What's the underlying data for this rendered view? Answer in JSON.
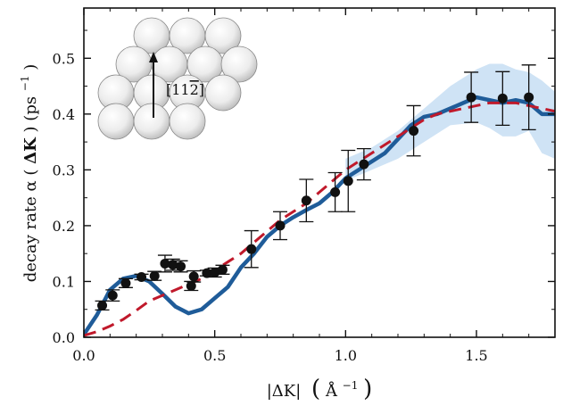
{
  "chart_data": {
    "type": "line",
    "xlabel_prefix": "|ΔK|",
    "xlabel_unit": "Å",
    "xlabel_exp": "−1",
    "ylabel_prefix": "decay rate α (",
    "ylabel_bold": "ΔK",
    "ylabel_suffix": ") (ps",
    "ylabel_exp": "−1",
    "ylabel_close": ")",
    "xlim": [
      0.0,
      1.8
    ],
    "ylim": [
      0.0,
      0.59
    ],
    "xticks": [
      0.0,
      0.5,
      1.0,
      1.5
    ],
    "xtick_labels": [
      "0.0",
      "0.5",
      "1.0",
      "1.5"
    ],
    "yticks": [
      0.0,
      0.1,
      0.2,
      0.3,
      0.4,
      0.5
    ],
    "ytick_labels": [
      "0.0",
      "0.1",
      "0.2",
      "0.3",
      "0.4",
      "0.5"
    ],
    "inset_label": "[11",
    "inset_label_bar": "2",
    "inset_label_end": "]",
    "colors": {
      "solid": "#1f5c99",
      "dashed": "#c0192b",
      "band": "#cfe3f5",
      "points": "#111111"
    },
    "series": [
      {
        "style": "solid",
        "x": [
          0.0,
          0.05,
          0.1,
          0.15,
          0.2,
          0.25,
          0.3,
          0.35,
          0.4,
          0.45,
          0.5,
          0.55,
          0.6,
          0.65,
          0.7,
          0.75,
          0.8,
          0.85,
          0.9,
          0.95,
          1.0,
          1.05,
          1.1,
          1.15,
          1.2,
          1.25,
          1.3,
          1.35,
          1.4,
          1.45,
          1.5,
          1.55,
          1.6,
          1.65,
          1.7,
          1.75,
          1.8
        ],
        "y": [
          0.005,
          0.04,
          0.085,
          0.105,
          0.11,
          0.1,
          0.078,
          0.055,
          0.043,
          0.05,
          0.07,
          0.09,
          0.125,
          0.15,
          0.18,
          0.2,
          0.215,
          0.228,
          0.24,
          0.26,
          0.285,
          0.3,
          0.315,
          0.33,
          0.355,
          0.38,
          0.395,
          0.4,
          0.41,
          0.42,
          0.43,
          0.425,
          0.42,
          0.425,
          0.42,
          0.4,
          0.4
        ]
      },
      {
        "style": "dashed",
        "x": [
          0.0,
          0.05,
          0.1,
          0.15,
          0.2,
          0.25,
          0.3,
          0.35,
          0.4,
          0.45,
          0.5,
          0.55,
          0.6,
          0.65,
          0.7,
          0.75,
          0.8,
          0.85,
          0.9,
          0.95,
          1.0,
          1.05,
          1.1,
          1.15,
          1.2,
          1.25,
          1.3,
          1.35,
          1.4,
          1.45,
          1.5,
          1.55,
          1.6,
          1.65,
          1.7,
          1.75,
          1.8
        ],
        "y": [
          0.003,
          0.01,
          0.02,
          0.032,
          0.048,
          0.065,
          0.075,
          0.085,
          0.095,
          0.105,
          0.12,
          0.135,
          0.15,
          0.17,
          0.19,
          0.21,
          0.225,
          0.24,
          0.26,
          0.28,
          0.3,
          0.315,
          0.33,
          0.345,
          0.36,
          0.375,
          0.39,
          0.4,
          0.405,
          0.41,
          0.415,
          0.42,
          0.42,
          0.42,
          0.415,
          0.41,
          0.405
        ]
      }
    ],
    "band": {
      "x": [
        1.0,
        1.1,
        1.2,
        1.3,
        1.4,
        1.5,
        1.55,
        1.6,
        1.65,
        1.7,
        1.75,
        1.8
      ],
      "lower": [
        0.28,
        0.3,
        0.32,
        0.35,
        0.38,
        0.385,
        0.375,
        0.36,
        0.36,
        0.37,
        0.33,
        0.32
      ],
      "upper": [
        0.32,
        0.34,
        0.37,
        0.41,
        0.45,
        0.48,
        0.49,
        0.49,
        0.48,
        0.475,
        0.46,
        0.44
      ]
    },
    "points": [
      {
        "x": 0.07,
        "y": 0.057,
        "err": 0.008
      },
      {
        "x": 0.11,
        "y": 0.075,
        "err": 0.01
      },
      {
        "x": 0.16,
        "y": 0.097,
        "err": 0.008
      },
      {
        "x": 0.22,
        "y": 0.108,
        "err": 0.005
      },
      {
        "x": 0.27,
        "y": 0.11,
        "err": 0.008
      },
      {
        "x": 0.31,
        "y": 0.132,
        "err": 0.015
      },
      {
        "x": 0.34,
        "y": 0.13,
        "err": 0.01
      },
      {
        "x": 0.37,
        "y": 0.127,
        "err": 0.01
      },
      {
        "x": 0.41,
        "y": 0.092,
        "err": 0.008
      },
      {
        "x": 0.42,
        "y": 0.109,
        "err": 0.01
      },
      {
        "x": 0.47,
        "y": 0.115,
        "err": 0.005
      },
      {
        "x": 0.5,
        "y": 0.116,
        "err": 0.008
      },
      {
        "x": 0.53,
        "y": 0.121,
        "err": 0.008
      },
      {
        "x": 0.64,
        "y": 0.158,
        "err": 0.033
      },
      {
        "x": 0.75,
        "y": 0.2,
        "err": 0.025
      },
      {
        "x": 0.85,
        "y": 0.245,
        "err": 0.038
      },
      {
        "x": 0.96,
        "y": 0.26,
        "err": 0.035
      },
      {
        "x": 1.01,
        "y": 0.28,
        "err": 0.055
      },
      {
        "x": 1.07,
        "y": 0.31,
        "err": 0.028
      },
      {
        "x": 1.26,
        "y": 0.37,
        "err": 0.045
      },
      {
        "x": 1.48,
        "y": 0.43,
        "err": 0.045
      },
      {
        "x": 1.6,
        "y": 0.428,
        "err": 0.048
      },
      {
        "x": 1.7,
        "y": 0.43,
        "err": 0.058
      }
    ]
  }
}
